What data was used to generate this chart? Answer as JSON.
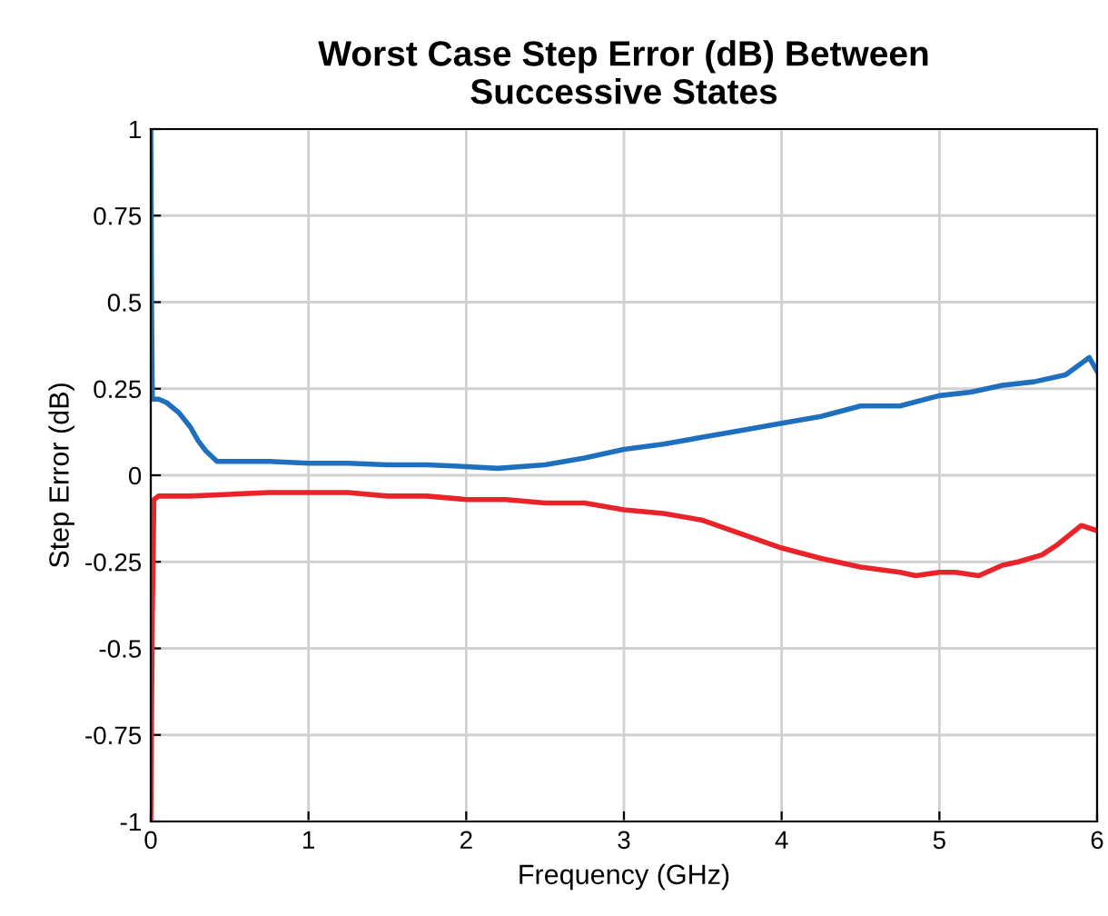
{
  "chart_data": {
    "type": "line",
    "title": "Worst Case Step Error (dB) Between\nSuccessive States",
    "xlabel": "Frequency (GHz)",
    "ylabel": "Step Error (dB)",
    "xlim": [
      0,
      6
    ],
    "xticks": [
      0,
      1,
      2,
      3,
      4,
      5,
      6
    ],
    "ylim": [
      -1,
      1
    ],
    "yticks": [
      -1,
      -0.75,
      -0.5,
      -0.25,
      0,
      0.25,
      0.5,
      0.75,
      1
    ],
    "grid": true,
    "marker": "none",
    "line_style": "solid",
    "series": [
      {
        "color": "#1f6fbf",
        "x": [
          0,
          0.005,
          0.01,
          0.05,
          0.1,
          0.18,
          0.25,
          0.3,
          0.35,
          0.42,
          0.5,
          0.75,
          1,
          1.25,
          1.5,
          1.75,
          2,
          2.2,
          2.5,
          2.75,
          3,
          3.25,
          3.5,
          3.75,
          4,
          4.25,
          4.5,
          4.75,
          5,
          5.2,
          5.4,
          5.6,
          5.8,
          5.95,
          6
        ],
        "values": [
          1.0,
          0.5,
          0.22,
          0.22,
          0.21,
          0.18,
          0.14,
          0.1,
          0.07,
          0.04,
          0.04,
          0.04,
          0.035,
          0.035,
          0.03,
          0.03,
          0.025,
          0.02,
          0.03,
          0.05,
          0.075,
          0.09,
          0.11,
          0.13,
          0.15,
          0.17,
          0.2,
          0.2,
          0.23,
          0.24,
          0.26,
          0.27,
          0.29,
          0.34,
          0.3
        ]
      },
      {
        "color": "#e8242a",
        "x": [
          0,
          0.01,
          0.02,
          0.05,
          0.25,
          0.5,
          0.75,
          1,
          1.25,
          1.5,
          1.75,
          2,
          2.25,
          2.5,
          2.75,
          3,
          3.25,
          3.5,
          3.75,
          4,
          4.25,
          4.5,
          4.75,
          4.85,
          5,
          5.1,
          5.25,
          5.4,
          5.5,
          5.65,
          5.75,
          5.9,
          6
        ],
        "values": [
          -1.0,
          -0.4,
          -0.07,
          -0.06,
          -0.06,
          -0.055,
          -0.05,
          -0.05,
          -0.05,
          -0.06,
          -0.06,
          -0.07,
          -0.07,
          -0.08,
          -0.08,
          -0.1,
          -0.11,
          -0.13,
          -0.17,
          -0.21,
          -0.24,
          -0.265,
          -0.28,
          -0.29,
          -0.28,
          -0.28,
          -0.29,
          -0.26,
          -0.25,
          -0.23,
          -0.2,
          -0.145,
          -0.16
        ]
      }
    ]
  }
}
